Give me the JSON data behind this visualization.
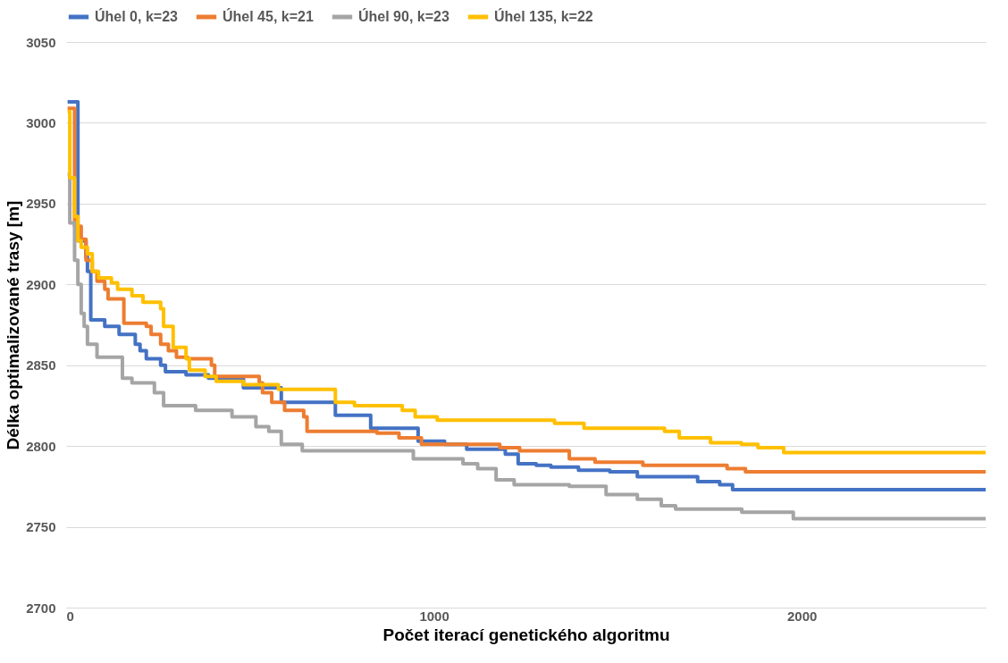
{
  "chart_data": {
    "type": "step",
    "xlabel": "Počet iterací genetického algoritmu",
    "ylabel": "Délka optimalizované trasy [m]",
    "xlim": [
      0,
      2500
    ],
    "xticks": [
      0,
      1000,
      2000
    ],
    "ylim": [
      2700,
      3050
    ],
    "yticks": [
      2700,
      2750,
      2800,
      2850,
      2900,
      2950,
      3000,
      3050
    ],
    "grid": "y",
    "legend": "top",
    "line_style": "solid",
    "marker": "none",
    "series": [
      {
        "name": "Úhel 0, k=23",
        "color": "#4472c4",
        "x": [
          4,
          32,
          54,
          58,
          67,
          105,
          144,
          188,
          201,
          218,
          257,
          270,
          326,
          387,
          482,
          585,
          732,
          828,
          957,
          1009,
          1029,
          1089,
          1194,
          1229,
          1278,
          1318,
          1393,
          1478,
          1553,
          1717,
          1777,
          1812,
          2500
        ],
        "values": [
          3013,
          2927,
          2917,
          2908,
          2878,
          2874,
          2869,
          2863,
          2859,
          2854,
          2850,
          2846,
          2844,
          2842,
          2836,
          2827,
          2819,
          2811,
          2803,
          2803,
          2801,
          2798,
          2795,
          2789,
          2788,
          2787,
          2785,
          2784,
          2781,
          2778,
          2776,
          2773,
          2773
        ]
      },
      {
        "name": "Úhel 45, k=21",
        "color": "#ed7d31",
        "x": [
          4,
          23,
          41,
          54,
          71,
          84,
          105,
          114,
          157,
          218,
          231,
          257,
          278,
          300,
          330,
          395,
          404,
          525,
          534,
          559,
          594,
          646,
          655,
          845,
          905,
          966,
          1179,
          1233,
          1368,
          1438,
          1568,
          1797,
          1847,
          2500
        ],
        "values": [
          3009,
          2936,
          2928,
          2915,
          2908,
          2902,
          2897,
          2891,
          2876,
          2874,
          2869,
          2863,
          2859,
          2855,
          2854,
          2850,
          2843,
          2839,
          2833,
          2827,
          2822,
          2818,
          2809,
          2808,
          2805,
          2801,
          2799,
          2797,
          2792,
          2790,
          2788,
          2786,
          2784,
          2784
        ]
      },
      {
        "name": "Úhel 90, k=23",
        "color": "#a5a5a5",
        "x": [
          4,
          10,
          23,
          32,
          41,
          49,
          58,
          84,
          153,
          179,
          240,
          265,
          352,
          451,
          516,
          551,
          585,
          642,
          944,
          1079,
          1119,
          1169,
          1218,
          1368,
          1468,
          1553,
          1618,
          1657,
          1837,
          1977,
          2500
        ],
        "values": [
          2968,
          2938,
          2915,
          2900,
          2882,
          2874,
          2863,
          2855,
          2842,
          2839,
          2833,
          2825,
          2822,
          2818,
          2812,
          2809,
          2801,
          2797,
          2792,
          2789,
          2786,
          2779,
          2776,
          2775,
          2770,
          2767,
          2763,
          2761,
          2759,
          2755,
          2755
        ]
      },
      {
        "name": "Úhel 135, k=22",
        "color": "#ffc000",
        "x": [
          4,
          10,
          23,
          32,
          41,
          58,
          71,
          88,
          123,
          140,
          179,
          209,
          257,
          265,
          291,
          326,
          335,
          378,
          408,
          482,
          577,
          732,
          784,
          914,
          949,
          1009,
          1189,
          1328,
          1408,
          1627,
          1667,
          1752,
          1836,
          1881,
          1951,
          2500
        ],
        "values": [
          3007,
          2966,
          2942,
          2927,
          2923,
          2919,
          2908,
          2904,
          2901,
          2897,
          2893,
          2889,
          2885,
          2874,
          2861,
          2854,
          2847,
          2843,
          2840,
          2838,
          2835,
          2827,
          2825,
          2822,
          2818,
          2816,
          2816,
          2814,
          2811,
          2809,
          2805,
          2802,
          2801,
          2799,
          2796,
          2796
        ]
      }
    ]
  }
}
